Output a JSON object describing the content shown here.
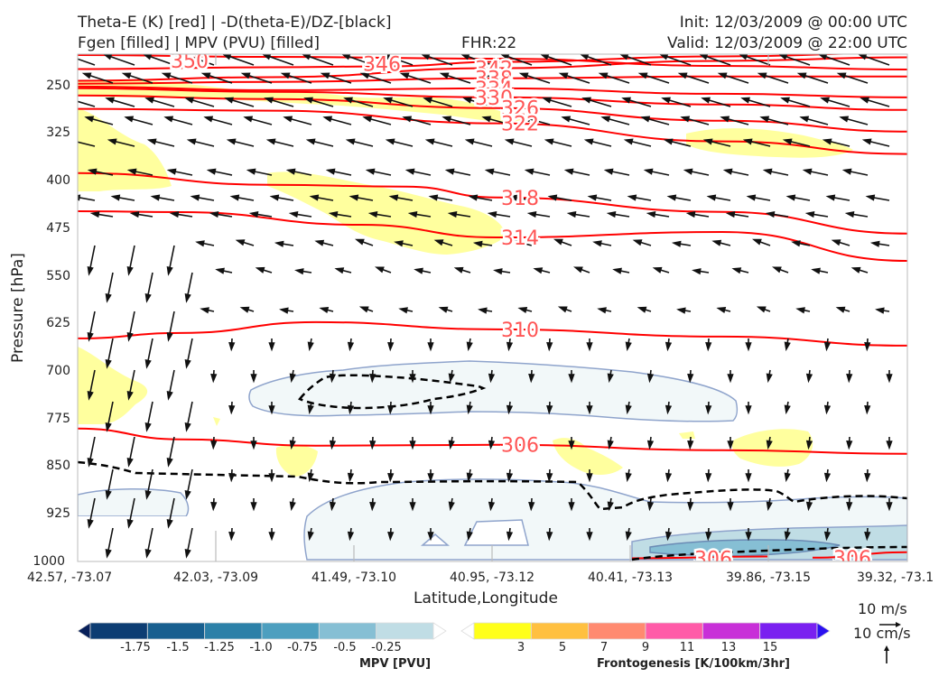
{
  "header": {
    "line1_left": "Theta-E (K) [red] | -D(theta-E)/DZ-[black]",
    "line2_left": "Fgen [filled] | MPV (PVU) [filled]",
    "fhr": "FHR:22",
    "init": "Init: 12/03/2009 @ 00:00 UTC",
    "valid": "Valid: 12/03/2009 @ 22:00 UTC"
  },
  "colors": {
    "theta_e": "#ff0000",
    "theta_e_label": "#ff5555",
    "ddz": "#000000",
    "mpv_fill": "#f2f8f9",
    "mpv_edge": "#8fa4cc",
    "fgen_fill": "#ffff99"
  },
  "chart_data": {
    "type": "cross-section",
    "xlabel": "Latitude,Longitude",
    "ylabel": "Pressure [hPa]",
    "ylim": [
      1000,
      200
    ],
    "yscale": "linear, inverted",
    "grid": false,
    "yticks": [
      "250",
      "325",
      "400",
      "475",
      "550",
      "625",
      "700",
      "775",
      "850",
      "925",
      "1000"
    ],
    "xticks": [
      "42.57, -73.07",
      "42.03, -73.09",
      "41.49, -73.10",
      "40.95, -73.12",
      "40.41, -73.13",
      "39.86, -73.15",
      "39.32, -73.1"
    ],
    "theta_e_contours": [
      {
        "label": "350",
        "pressure": 210
      },
      {
        "label": "346",
        "pressure": 215
      },
      {
        "label": "342",
        "pressure": 222
      },
      {
        "label": "338",
        "pressure": 238
      },
      {
        "label": "334",
        "pressure": 254
      },
      {
        "label": "330",
        "pressure": 268
      },
      {
        "label": "326",
        "pressure": 285
      },
      {
        "label": "322",
        "pressure": 309
      },
      {
        "label": "318",
        "pressure": 426
      },
      {
        "label": "314",
        "pressure": 489
      },
      {
        "label": "310",
        "pressure": 634
      },
      {
        "label": "306",
        "pressure": 816
      },
      {
        "label": "306",
        "pressure": 995
      },
      {
        "label": "306",
        "pressure": 994
      }
    ],
    "mpv_colorbar": {
      "label": "MPV [PVU]",
      "ticks": [
        "-1.75",
        "-1.5",
        "-1.25",
        "-1.0",
        "-0.75",
        "-0.5",
        "-0.25"
      ],
      "colors": [
        "#08205a",
        "#0d3d73",
        "#185f8f",
        "#2c80a8",
        "#4d9fbf",
        "#86bfd4",
        "#c0dde5",
        "#ffffff"
      ]
    },
    "fgen_colorbar": {
      "label": "Frontogenesis [K/100km/3hr]",
      "ticks": [
        "3",
        "5",
        "7",
        "9",
        "11",
        "13",
        "15"
      ],
      "colors": [
        "#ffffff",
        "#ffff1a",
        "#ffc040",
        "#ff8a70",
        "#ff5ba8",
        "#c830d8",
        "#7a20f0",
        "#2b10f0"
      ]
    },
    "vector_legend": {
      "horizontal": "10 m/s",
      "vertical": "10 cm/s"
    }
  }
}
